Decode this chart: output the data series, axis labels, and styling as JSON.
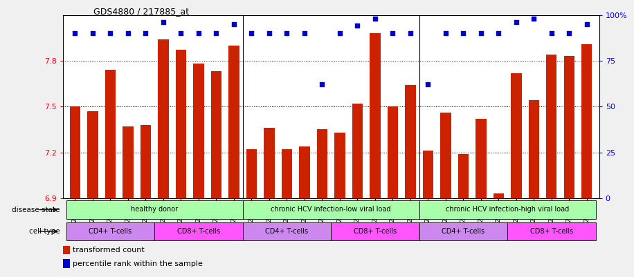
{
  "title": "GDS4880 / 217885_at",
  "samples": [
    "GSM1210739",
    "GSM1210740",
    "GSM1210741",
    "GSM1210742",
    "GSM1210743",
    "GSM1210754",
    "GSM1210755",
    "GSM1210756",
    "GSM1210757",
    "GSM1210758",
    "GSM1210745",
    "GSM1210750",
    "GSM1210751",
    "GSM1210752",
    "GSM1210753",
    "GSM1210760",
    "GSM1210765",
    "GSM1210766",
    "GSM1210767",
    "GSM1210768",
    "GSM1210744",
    "GSM1210746",
    "GSM1210747",
    "GSM1210748",
    "GSM1210749",
    "GSM1210759",
    "GSM1210761",
    "GSM1210762",
    "GSM1210763",
    "GSM1210764"
  ],
  "bar_values": [
    7.5,
    7.47,
    7.74,
    7.37,
    7.38,
    7.94,
    7.87,
    7.78,
    7.73,
    7.9,
    7.22,
    7.36,
    7.22,
    7.24,
    7.35,
    7.33,
    7.52,
    7.98,
    7.5,
    7.64,
    7.21,
    7.46,
    7.19,
    7.42,
    6.93,
    7.72,
    7.54,
    7.84,
    7.83,
    7.91
  ],
  "percentile_values": [
    90,
    90,
    90,
    90,
    90,
    96,
    90,
    90,
    90,
    95,
    90,
    90,
    90,
    90,
    62,
    90,
    94,
    98,
    90,
    90,
    62,
    90,
    90,
    90,
    90,
    96,
    98,
    90,
    90,
    95
  ],
  "bar_color": "#cc2200",
  "dot_color": "#0000cc",
  "ylim_left": [
    6.9,
    8.1
  ],
  "ylim_right": [
    0,
    100
  ],
  "yticks_left": [
    6.9,
    7.2,
    7.5,
    7.8
  ],
  "yticks_right": [
    0,
    25,
    50,
    75,
    100
  ],
  "hlines": [
    7.2,
    7.5,
    7.8
  ],
  "bg_color": "#f0f0f0",
  "plot_bg": "#ffffff",
  "disease_groups": [
    {
      "label": "healthy donor",
      "start": 0,
      "end": 10
    },
    {
      "label": "chronic HCV infection-low viral load",
      "start": 10,
      "end": 20
    },
    {
      "label": "chronic HCV infection-high viral load",
      "start": 20,
      "end": 30
    }
  ],
  "cell_groups": [
    {
      "label": "CD4+ T-cells",
      "start": 0,
      "end": 5,
      "cd4": true
    },
    {
      "label": "CD8+ T-cells",
      "start": 5,
      "end": 10,
      "cd4": false
    },
    {
      "label": "CD4+ T-cells",
      "start": 10,
      "end": 15,
      "cd4": true
    },
    {
      "label": "CD8+ T-cells",
      "start": 15,
      "end": 20,
      "cd4": false
    },
    {
      "label": "CD4+ T-cells",
      "start": 20,
      "end": 25,
      "cd4": true
    },
    {
      "label": "CD8+ T-cells",
      "start": 25,
      "end": 30,
      "cd4": false
    }
  ],
  "dis_color": "#aaffaa",
  "cd4_color": "#cc88ee",
  "cd8_color": "#ff55ff"
}
